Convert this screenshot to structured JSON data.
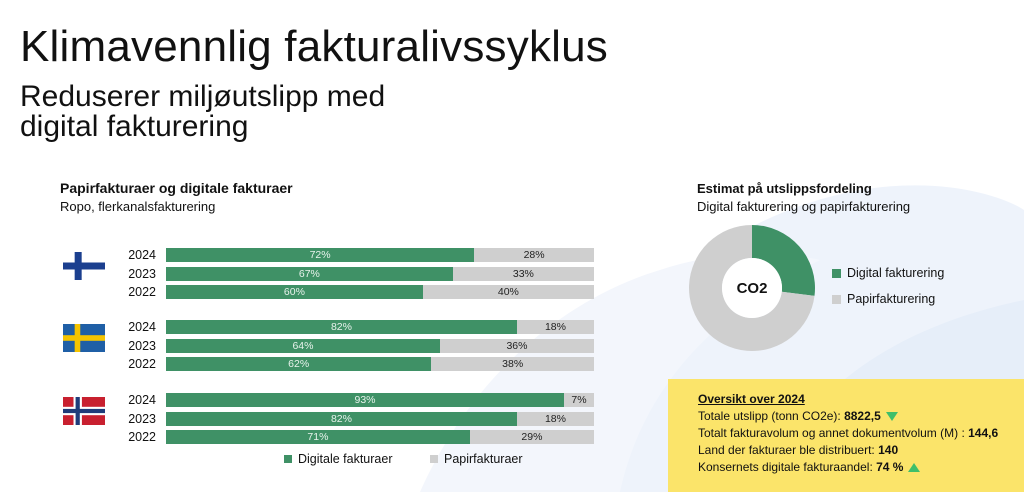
{
  "header": {
    "title": "Klimavennlig fakturalivssyklus",
    "subtitle_line1": "Reduserer miljøutslipp med",
    "subtitle_line2": "digital fakturering"
  },
  "colors": {
    "digital": "#3f9166",
    "paper": "#cfcfcf",
    "overview_bg": "#fbe46a",
    "arrow": "#3fbf6a"
  },
  "chart_data": [
    {
      "type": "bar",
      "title": "Papirfakturaer og digitale fakturaer",
      "subtitle": "Ropo, flerkanalsfakturering",
      "orientation": "horizontal-stacked-100",
      "groups": [
        {
          "country": "Finland",
          "flag": "finland-flag-icon",
          "rows": [
            {
              "year": "2024",
              "digital": 72,
              "paper": 28
            },
            {
              "year": "2023",
              "digital": 67,
              "paper": 33
            },
            {
              "year": "2022",
              "digital": 60,
              "paper": 40
            }
          ]
        },
        {
          "country": "Sweden",
          "flag": "sweden-flag-icon",
          "rows": [
            {
              "year": "2024",
              "digital": 82,
              "paper": 18
            },
            {
              "year": "2023",
              "digital": 64,
              "paper": 36
            },
            {
              "year": "2022",
              "digital": 62,
              "paper": 38
            }
          ]
        },
        {
          "country": "Norway",
          "flag": "norway-flag-icon",
          "rows": [
            {
              "year": "2024",
              "digital": 93,
              "paper": 7
            },
            {
              "year": "2023",
              "digital": 82,
              "paper": 18
            },
            {
              "year": "2022",
              "digital": 71,
              "paper": 29
            }
          ]
        }
      ],
      "legend": [
        "Digitale fakturaer",
        "Papirfakturaer"
      ],
      "legend_placement": "bottom"
    },
    {
      "type": "pie",
      "title": "Estimat på utslippsfordeling",
      "subtitle": "Digital fakturering og papirfakturering",
      "center_label": "CO2",
      "slices": [
        {
          "name": "Digital fakturering",
          "value": 27
        },
        {
          "name": "Papirfakturering",
          "value": 73
        }
      ],
      "legend_placement": "right"
    }
  ],
  "overview": {
    "title": "Oversikt over 2024",
    "lines": [
      {
        "label": "Totale utslipp (tonn CO2e): ",
        "value": "8822,5",
        "arrow": "down"
      },
      {
        "label": "Totalt fakturavolum og annet dokumentvolum (M) : ",
        "value": "144,6",
        "arrow": ""
      },
      {
        "label": "Land der fakturaer ble distribuert: ",
        "value": "140",
        "arrow": ""
      },
      {
        "label": "Konsernets digitale fakturaandel: ",
        "value": "74 %",
        "arrow": "up"
      }
    ]
  }
}
